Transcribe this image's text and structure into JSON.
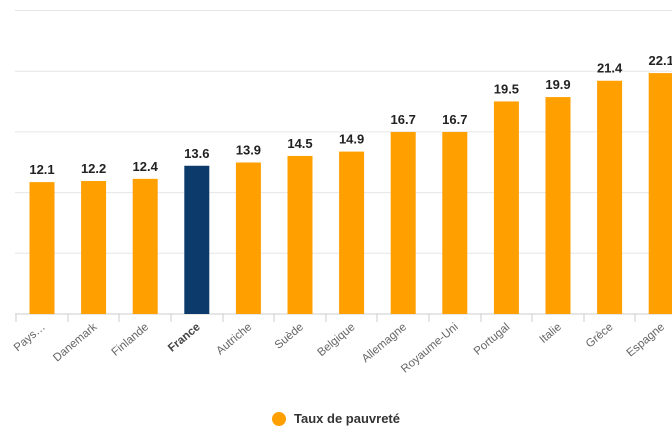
{
  "chart_data": {
    "type": "bar",
    "categories": [
      "Pays…",
      "Danemark",
      "Finlande",
      "France",
      "Autriche",
      "Suède",
      "Belgique",
      "Allemagne",
      "Royaume-Uni",
      "Portugal",
      "Italie",
      "Grèce",
      "Espagne"
    ],
    "series": [
      {
        "name": "Taux de pauvreté",
        "values": [
          12.1,
          12.2,
          12.4,
          13.6,
          13.9,
          14.5,
          14.9,
          16.7,
          16.7,
          19.5,
          19.9,
          21.4,
          22.1
        ]
      }
    ],
    "highlight_category": "France",
    "ylim": [
      0,
      25
    ],
    "gridlines": [
      0,
      5,
      10,
      15,
      20,
      25
    ],
    "grid": true,
    "legend_position": "bottom-center",
    "title": "",
    "xlabel": "",
    "ylabel": "",
    "colors": {
      "bar": "#ff9f00",
      "highlight_bar": "#0b3a6b",
      "legend": "#ff9f00"
    }
  }
}
